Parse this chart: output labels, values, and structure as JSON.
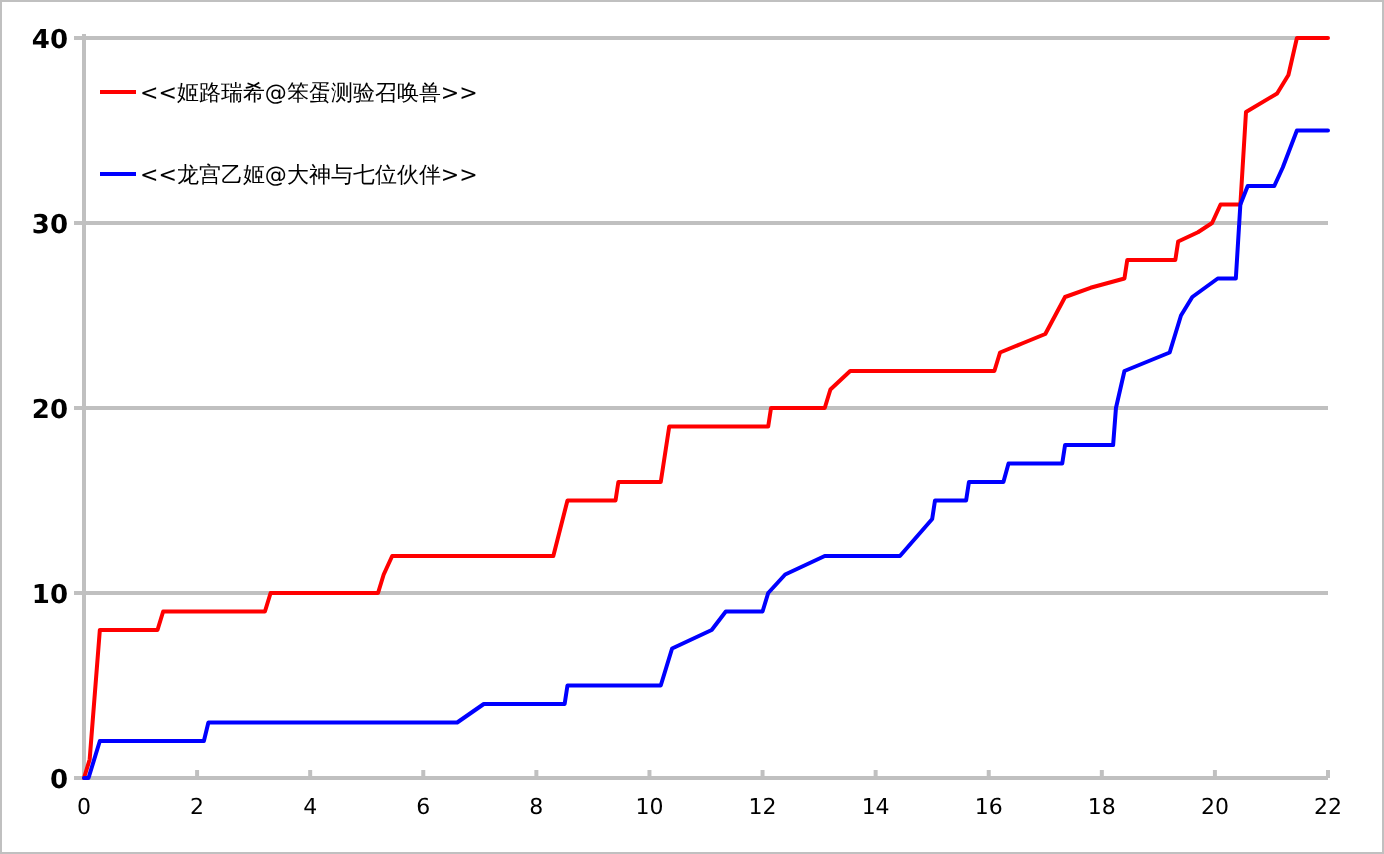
{
  "chart_data": {
    "type": "line",
    "xlim": [
      0,
      22
    ],
    "ylim": [
      0,
      40
    ],
    "xticks": [
      0,
      2,
      4,
      6,
      8,
      10,
      12,
      14,
      16,
      18,
      20,
      22
    ],
    "yticks": [
      0,
      10,
      20,
      30,
      40
    ],
    "grid": "y",
    "legend": "top left",
    "marker": "none",
    "line_style": "solid",
    "series": [
      {
        "name": "<<姬路瑞希@笨蛋测验召唤兽>>",
        "color": "#ff0000",
        "x": [
          0,
          0.1,
          0.28,
          1.3,
          1.4,
          3.2,
          3.3,
          5.2,
          5.3,
          5.45,
          8.3,
          8.55,
          9.4,
          9.45,
          10.2,
          10.35,
          12.1,
          12.15,
          13.1,
          13.2,
          13.55,
          16.1,
          16.2,
          16.6,
          17.0,
          17.35,
          17.8,
          18.4,
          18.45,
          19.3,
          19.35,
          19.7,
          19.95,
          20.1,
          20.45,
          20.55,
          21.1,
          21.3,
          21.45,
          22
        ],
        "values": [
          0,
          1,
          8,
          8,
          9,
          9,
          10,
          10,
          11,
          12,
          12,
          15,
          15,
          16,
          16,
          19,
          19,
          20,
          20,
          21,
          22,
          22,
          23,
          23.5,
          24,
          26,
          26.5,
          27,
          28,
          28,
          29,
          29.5,
          30,
          31,
          31,
          36,
          37,
          38,
          40,
          40
        ]
      },
      {
        "name": "<<龙宫乙姬@大神与七位伙伴>>",
        "color": "#0000ff",
        "x": [
          0,
          0.08,
          0.28,
          2.12,
          2.2,
          6.6,
          7.07,
          8.5,
          8.55,
          10.2,
          10.3,
          10.4,
          11.1,
          11.35,
          12.0,
          12.1,
          12.4,
          13.1,
          14.43,
          15.0,
          15.05,
          15.6,
          15.65,
          16.26,
          16.35,
          17.3,
          17.35,
          18.2,
          18.25,
          18.4,
          19.2,
          19.4,
          19.6,
          20.05,
          20.37,
          20.45,
          20.58,
          21.05,
          21.2,
          21.45,
          22
        ],
        "values": [
          0,
          0,
          2,
          2,
          3,
          3,
          4,
          4,
          5,
          5,
          6,
          7,
          8,
          9,
          9,
          10,
          11,
          12,
          12,
          14,
          15,
          15,
          16,
          16,
          17,
          17,
          18,
          18,
          20,
          22,
          23,
          25,
          26,
          27,
          27,
          31,
          32,
          32,
          33,
          35,
          35
        ]
      }
    ]
  }
}
